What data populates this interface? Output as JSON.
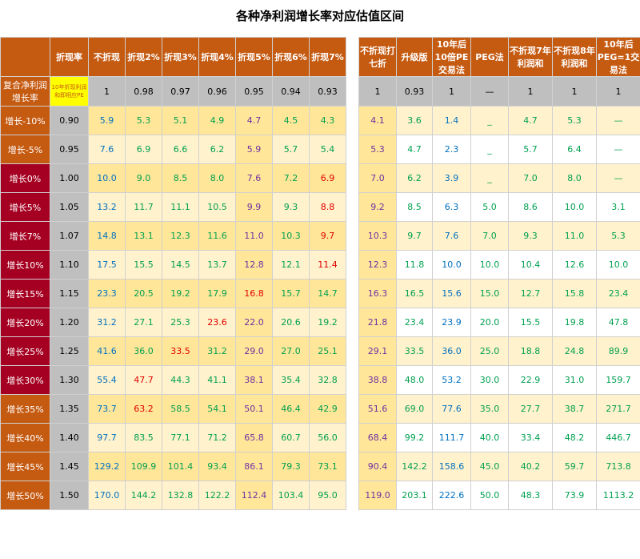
{
  "title": "各种净利润增长率对应估值区间",
  "header": [
    "折现率",
    "不折现",
    "折现2%",
    "折现3%",
    "折现4%",
    "折现5%",
    "折现6%",
    "折现7%",
    "不折现打七折",
    "升级版",
    "10年后10倍PE交易法",
    "PEG法",
    "不折现7年利润和",
    "不折现8年利润和",
    "10年后PEG=1交易法"
  ],
  "subheader": [
    "复合净利润增长率",
    "10年折现利润和即相应PE",
    "1",
    "0.98",
    "0.97",
    "0.96",
    "0.95",
    "0.94",
    "0.93",
    "1",
    "0.93",
    "1",
    "—",
    "1",
    "1",
    "1"
  ],
  "rows": [
    [
      "增长-10%",
      "0.90",
      "5.9",
      "5.3",
      "5.1",
      "4.9",
      "4.7",
      "4.5",
      "4.3",
      "4.1",
      "3.6",
      "1.4",
      "_",
      "4.7",
      "5.3",
      "—"
    ],
    [
      "增长-5%",
      "0.95",
      "7.6",
      "6.9",
      "6.6",
      "6.2",
      "5.9",
      "5.7",
      "5.4",
      "5.3",
      "4.7",
      "2.3",
      "_",
      "5.7",
      "6.4",
      "—"
    ],
    [
      "增长0%",
      "1.00",
      "10.0",
      "9.0",
      "8.5",
      "8.0",
      "7.6",
      "7.2",
      "6.9",
      "7.0",
      "6.2",
      "3.9",
      "_",
      "7.0",
      "8.0",
      "—"
    ],
    [
      "增长5%",
      "1.05",
      "13.2",
      "11.7",
      "11.1",
      "10.5",
      "9.9",
      "9.3",
      "8.8",
      "9.2",
      "8.5",
      "6.3",
      "5.0",
      "8.6",
      "10.0",
      "3.1"
    ],
    [
      "增长7%",
      "1.07",
      "14.8",
      "13.1",
      "12.3",
      "11.6",
      "11.0",
      "10.3",
      "9.7",
      "10.3",
      "9.7",
      "7.6",
      "7.0",
      "9.3",
      "11.0",
      "5.3"
    ],
    [
      "增长10%",
      "1.10",
      "17.5",
      "15.5",
      "14.5",
      "13.7",
      "12.8",
      "12.1",
      "11.4",
      "12.3",
      "11.8",
      "10.0",
      "10.0",
      "10.4",
      "12.6",
      "10.0"
    ],
    [
      "增长15%",
      "1.15",
      "23.3",
      "20.5",
      "19.2",
      "17.9",
      "16.8",
      "15.7",
      "14.7",
      "16.3",
      "16.5",
      "15.6",
      "15.0",
      "12.7",
      "15.8",
      "23.4"
    ],
    [
      "增长20%",
      "1.20",
      "31.2",
      "27.1",
      "25.3",
      "23.6",
      "22.0",
      "20.6",
      "19.2",
      "21.8",
      "23.4",
      "23.9",
      "20.0",
      "15.5",
      "19.8",
      "47.8"
    ],
    [
      "增长25%",
      "1.25",
      "41.6",
      "36.0",
      "33.5",
      "31.2",
      "29.0",
      "27.0",
      "25.1",
      "29.1",
      "33.5",
      "36.0",
      "25.0",
      "18.8",
      "24.8",
      "89.9"
    ],
    [
      "增长30%",
      "1.30",
      "55.4",
      "47.7",
      "44.3",
      "41.1",
      "38.1",
      "35.4",
      "32.8",
      "38.8",
      "48.0",
      "53.2",
      "30.0",
      "22.9",
      "31.0",
      "159.7"
    ],
    [
      "增长35%",
      "1.35",
      "73.7",
      "63.2",
      "58.5",
      "54.1",
      "50.1",
      "46.4",
      "42.9",
      "51.6",
      "69.0",
      "77.6",
      "35.0",
      "27.7",
      "38.7",
      "271.7"
    ],
    [
      "增长40%",
      "1.40",
      "97.7",
      "83.5",
      "77.1",
      "71.2",
      "65.8",
      "60.7",
      "56.0",
      "68.4",
      "99.2",
      "111.7",
      "40.0",
      "33.4",
      "48.2",
      "446.7"
    ],
    [
      "增长45%",
      "1.45",
      "129.2",
      "109.9",
      "101.4",
      "93.4",
      "86.1",
      "79.3",
      "73.1",
      "90.4",
      "142.2",
      "158.6",
      "45.0",
      "40.2",
      "59.7",
      "713.8"
    ],
    [
      "增长50%",
      "1.50",
      "170.0",
      "144.2",
      "132.8",
      "122.2",
      "112.4",
      "103.4",
      "95.0",
      "119.0",
      "203.1",
      "222.6",
      "50.0",
      "48.3",
      "73.9",
      "1113.2"
    ]
  ]
}
